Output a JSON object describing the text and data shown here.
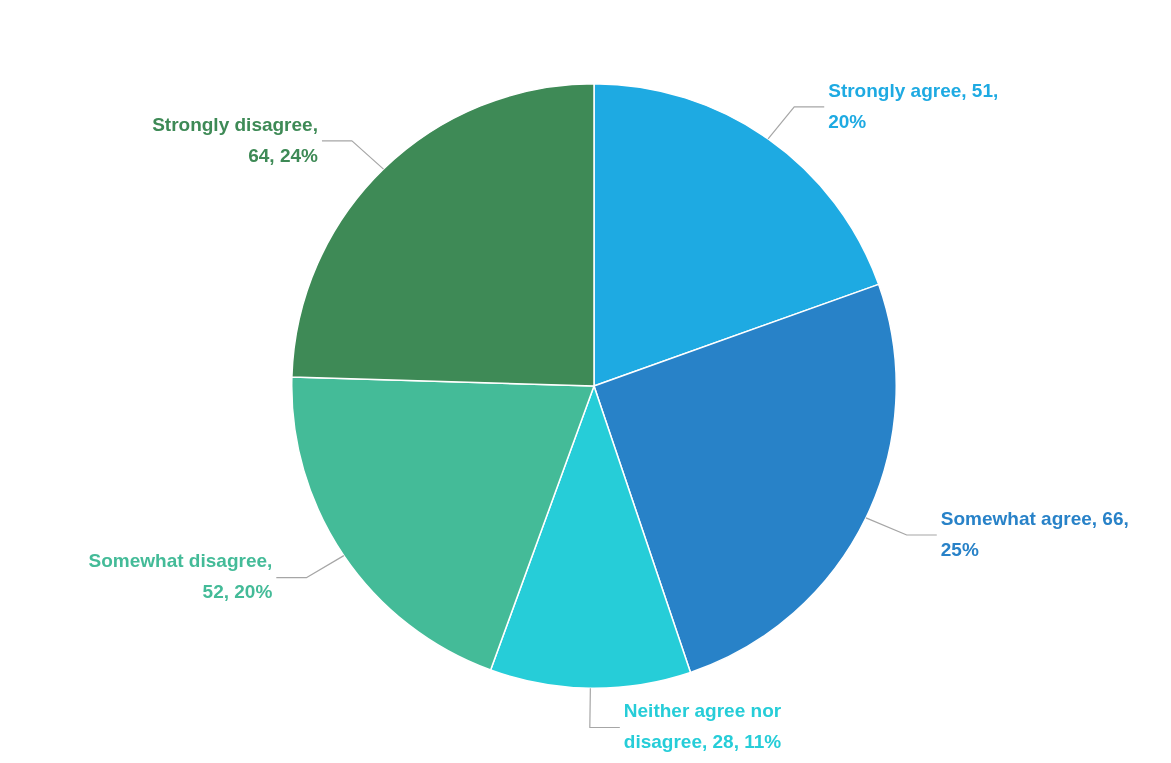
{
  "chart_data": {
    "type": "pie",
    "categories": [
      "Strongly agree",
      "Somewhat agree",
      "Neither agree nor disagree",
      "Somewhat disagree",
      "Strongly disagree"
    ],
    "values": [
      51,
      66,
      28,
      52,
      64
    ],
    "colors": [
      "#1eaae2",
      "#2882c8",
      "#26cdd8",
      "#44bb98",
      "#3e8a56"
    ],
    "value_labels": [
      ", 51, 20%",
      ", 66, 25%",
      ", 28, 11%",
      ", 52, 20%",
      ", 64, 24%"
    ],
    "legend": false
  }
}
